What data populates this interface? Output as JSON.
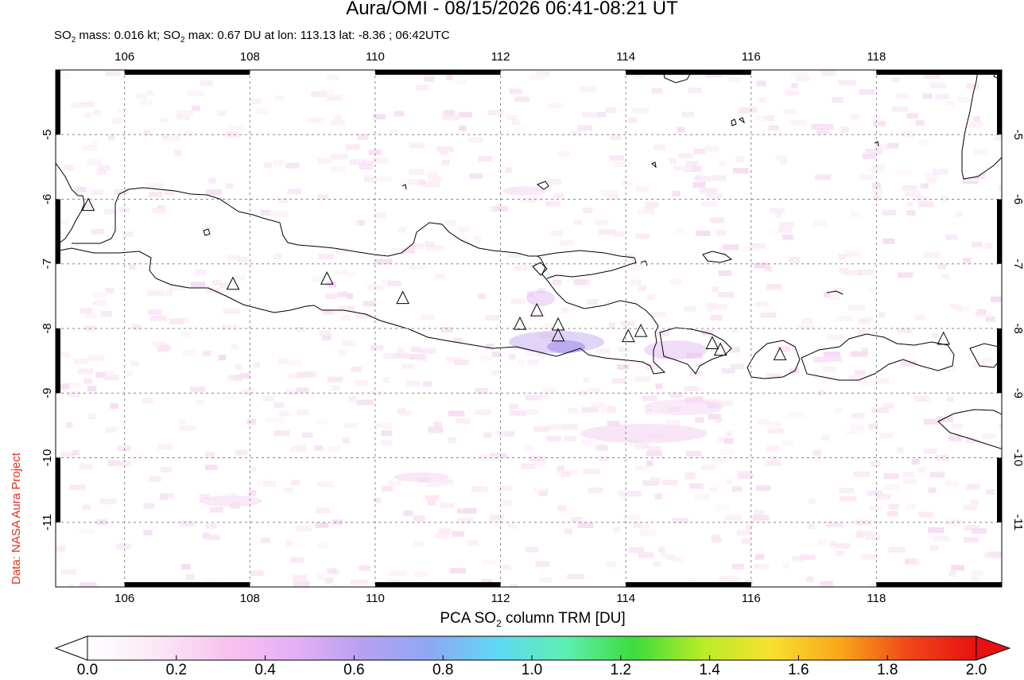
{
  "header": {
    "title": "Aura/OMI - 08/15/2026 06:41-08:21 UT",
    "subtitle_prefix": "SO",
    "subtitle_mid": " mass: 0.016 kt; SO",
    "subtitle_rest": " max: 0.67 DU at lon: 113.13 lat: -8.36 ; 06:42UTC",
    "subscript": "2"
  },
  "credit": "Data: NASA Aura Project",
  "map": {
    "lon_range": [
      104.9,
      120.0
    ],
    "lat_range": [
      -12.0,
      -4.0
    ],
    "lon_ticks": [
      "106",
      "108",
      "110",
      "112",
      "114",
      "116",
      "118"
    ],
    "lon_values": [
      106,
      108,
      110,
      112,
      114,
      116,
      118
    ],
    "lat_ticks": [
      "-5",
      "-6",
      "-7",
      "-8",
      "-9",
      "-10",
      "-11"
    ],
    "lat_values": [
      -5,
      -6,
      -7,
      -8,
      -9,
      -10,
      -11
    ],
    "volcanoes": [
      {
        "lon": 105.42,
        "lat": -6.1
      },
      {
        "lon": 107.73,
        "lat": -7.32
      },
      {
        "lon": 109.23,
        "lat": -7.24
      },
      {
        "lon": 110.44,
        "lat": -7.54
      },
      {
        "lon": 112.31,
        "lat": -7.94
      },
      {
        "lon": 112.58,
        "lat": -7.73
      },
      {
        "lon": 112.92,
        "lat": -7.95
      },
      {
        "lon": 112.92,
        "lat": -8.12
      },
      {
        "lon": 114.04,
        "lat": -8.13
      },
      {
        "lon": 114.24,
        "lat": -8.05
      },
      {
        "lon": 115.38,
        "lat": -8.24
      },
      {
        "lon": 115.51,
        "lat": -8.34
      },
      {
        "lon": 116.46,
        "lat": -8.41
      },
      {
        "lon": 119.07,
        "lat": -8.17
      }
    ],
    "so2_max_location": {
      "lon": 113.13,
      "lat": -8.36,
      "value": 0.67
    }
  },
  "colorbar": {
    "title_prefix": "PCA SO",
    "title_sub": "2",
    "title_suffix": " column TRM [DU]",
    "ticks": [
      "0.0",
      "0.2",
      "0.4",
      "0.6",
      "0.8",
      "1.0",
      "1.2",
      "1.4",
      "1.6",
      "1.8",
      "2.0"
    ],
    "colors": [
      "#ffffff",
      "#fbe8f6",
      "#f7c4ef",
      "#e6b0f4",
      "#b8a0f0",
      "#8ea8f4",
      "#5fd8f4",
      "#5cf0b0",
      "#3cdc3c",
      "#b8ec28",
      "#f8e030",
      "#f8a818",
      "#f04818",
      "#e81010"
    ],
    "range": [
      0.0,
      2.0
    ]
  }
}
